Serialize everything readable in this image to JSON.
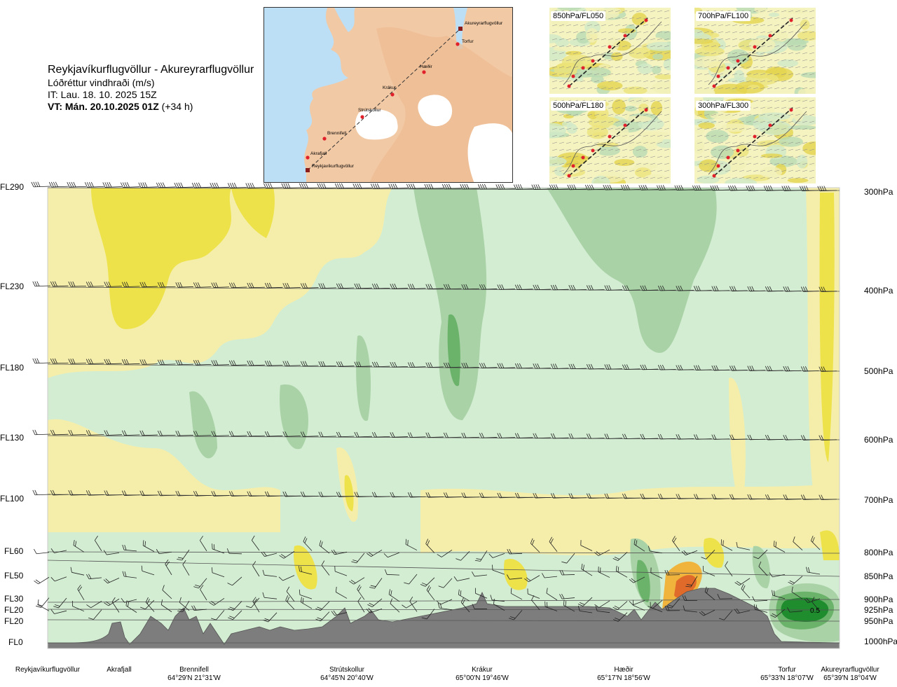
{
  "title": {
    "route": "Reykjavíkurflugvöllur - Akureyrarflugvöllur",
    "parameter": "Lóðréttur vindhraði (m/s)",
    "issue_time": "IT: Lau. 18. 10. 2025 15Z",
    "valid_label": "VT: Mán. 20.10.2025 01Z",
    "valid_offset": "(+34 h)"
  },
  "route_map": {
    "points": [
      {
        "name": "Akureyrarflugvöllur"
      },
      {
        "name": "Torfur"
      },
      {
        "name": "Hæðir"
      },
      {
        "name": "Krákur"
      },
      {
        "name": "Strútskollur"
      },
      {
        "name": "Brennifell"
      },
      {
        "name": "Akrafjall"
      },
      {
        "name": "Reykjavíkurflugvöllur"
      }
    ],
    "colors": {
      "sea": "#bcdff5",
      "land": "#f2c9a5",
      "ice": "#ffffff",
      "route": "#333333",
      "point": "#e0202a"
    }
  },
  "insets": [
    {
      "label": "850hPa/FL050"
    },
    {
      "label": "700hPa/FL100"
    },
    {
      "label": "500hPa/FL180"
    },
    {
      "label": "300hPa/FL300"
    }
  ],
  "levels": {
    "flight_levels": [
      "FL290",
      "FL230",
      "FL180",
      "FL130",
      "FL100",
      "FL60",
      "FL50",
      "FL30",
      "FL20",
      "FL20",
      "FL0"
    ],
    "pressure_levels": [
      "300hPa",
      "400hPa",
      "500hPa",
      "600hPa",
      "700hPa",
      "800hPa",
      "850hPa",
      "900hPa",
      "925hPa",
      "950hPa",
      "1000hPa"
    ]
  },
  "sites": [
    {
      "name": "Reykjavíkurflugvöllur",
      "coord": ""
    },
    {
      "name": "Akrafjall",
      "coord": ""
    },
    {
      "name": "Brennifell",
      "coord": "64°29'N 21°31'W"
    },
    {
      "name": "Strútskollur",
      "coord": "64°45'N 20°40'W"
    },
    {
      "name": "Krákur",
      "coord": "65°00'N 19°46'W"
    },
    {
      "name": "Hæðir",
      "coord": "65°17'N 18°56'W"
    },
    {
      "name": "Torfur",
      "coord": "65°33'N 18°07'W"
    },
    {
      "name": "Akureyrarflugvöllur",
      "coord": "65°39'N 18°04'W"
    }
  ],
  "contour_label": "0.5",
  "colors": {
    "updraft_weak": "#f5eeaa",
    "updraft_mid": "#ede24a",
    "updraft_strong": "#f0b43c",
    "updraft_max": "#e06a2a",
    "neutral": "#fbfbe8",
    "downdraft_weak": "#d3edd2",
    "downdraft_mid": "#a9d2a6",
    "downdraft_strong": "#6bb36a",
    "downdraft_max": "#1f8c2e",
    "terrain": "#7d7d7d"
  }
}
